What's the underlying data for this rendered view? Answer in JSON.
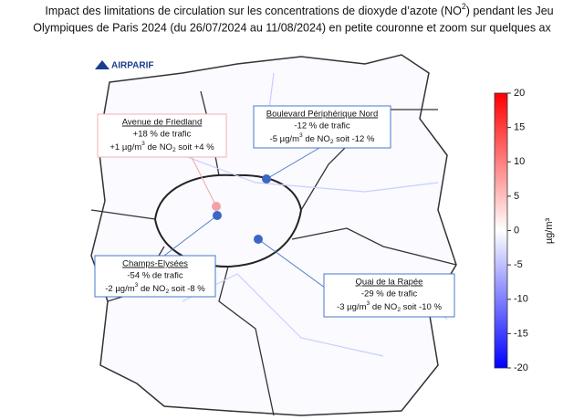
{
  "title": {
    "line1": [
      "Impact des limitations de circulation sur les concentrations de dioxyde d’azote (NO",
      "2",
      ") pendant les Jeu"
    ],
    "line2": "Olympiques de Paris 2024 (du 26/07/2024 au 11/08/2024) en petite couronne et zoom sur quelques ax"
  },
  "logo": "AIRPARIF",
  "callouts": [
    {
      "title": "Avenue de Friedland",
      "traffic": "+18 % de trafic",
      "line": [
        "+1 µg/m",
        "3",
        " de NO",
        "2",
        " soit +4 %"
      ]
    },
    {
      "title": "Boulevard Périphérique Nord",
      "traffic": "-12 % de trafic",
      "line": [
        "-5 µg/m",
        "3",
        " de NO",
        "2",
        " soit -12 %"
      ]
    },
    {
      "title": "Champs-Elysées",
      "traffic": "-54 % de trafic",
      "line": [
        "-2 µg/m",
        "3",
        " de NO",
        "2",
        " soit -8 %"
      ]
    },
    {
      "title": "Quai de la Rapée",
      "traffic": "-29 % de trafic",
      "line": [
        "-3 µg/m",
        "3",
        " de NO",
        "2",
        " soit -10 %"
      ]
    }
  ],
  "colorbar": {
    "label": "µg/m³",
    "ylim": [
      -20,
      20
    ],
    "yticks": [
      -20,
      -15,
      -10,
      -5,
      0,
      5,
      10,
      15,
      20
    ]
  }
}
